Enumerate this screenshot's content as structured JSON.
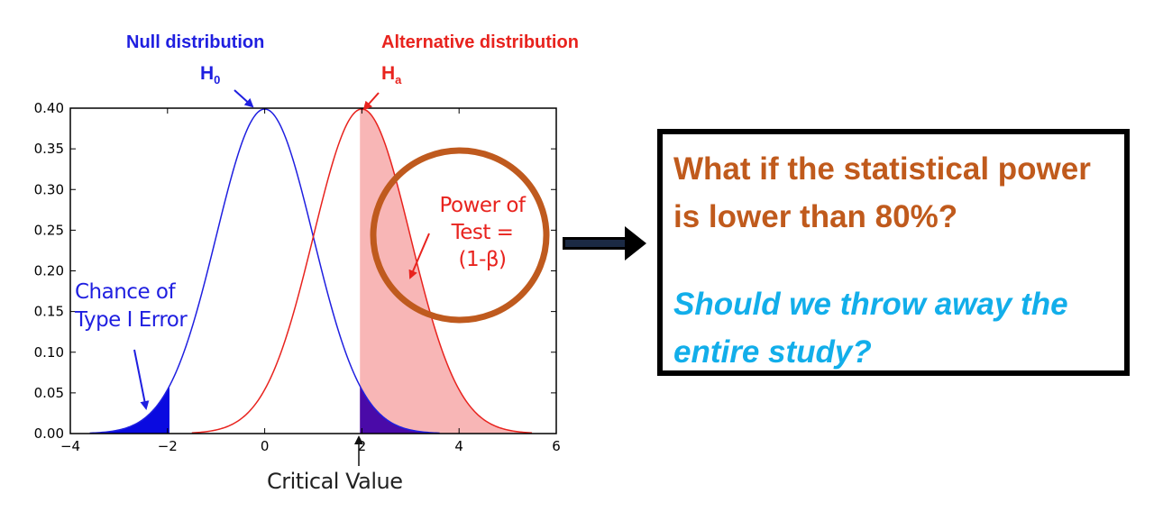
{
  "chart_data": {
    "type": "area",
    "series": [
      {
        "name": "Null distribution",
        "mean": 0,
        "sd": 1,
        "color": "#1f1fe0"
      },
      {
        "name": "Alternative distribution",
        "mean": 2,
        "sd": 1,
        "color": "#e8231e"
      }
    ],
    "xlim": [
      -4,
      6
    ],
    "ylim": [
      0,
      0.4
    ],
    "x_ticks": [
      "−4",
      "−2",
      "0",
      "2",
      "4",
      "6"
    ],
    "y_ticks": [
      "0.00",
      "0.05",
      "0.10",
      "0.15",
      "0.20",
      "0.25",
      "0.30",
      "0.35",
      "0.40"
    ],
    "critical_value": 1.96,
    "shaded_regions": [
      {
        "label": "Type I error (left tail of null)",
        "from": -4,
        "to": -1.96,
        "color": "#0a0ae0"
      },
      {
        "label": "Power (alternative beyond critical value)",
        "from": 1.96,
        "to": 6,
        "color": "#f8b6b6"
      },
      {
        "label": "Null right tail overlap",
        "from": 1.96,
        "to": 6,
        "color": "#4a0aa8"
      }
    ]
  },
  "labels": {
    "null_title": "Null distribution",
    "null_h": "H",
    "null_sub": "0",
    "alt_title": "Alternative distribution",
    "alt_h": "H",
    "alt_sub": "a",
    "type1_line1": "Chance of",
    "type1_line2": "Type I Error",
    "power_line1": "Power of",
    "power_line2": "Test =",
    "power_line3": "(1-β)",
    "critical": "Critical Value"
  },
  "callout": {
    "question": "What if the statistical power is lower than 80%?",
    "followup": "Should we throw away the entire study?"
  },
  "colors": {
    "null": "#1f1fe0",
    "alt": "#e8231e",
    "circle": "#bf5a1e",
    "question": "#c05a1c",
    "followup": "#12aeea"
  }
}
